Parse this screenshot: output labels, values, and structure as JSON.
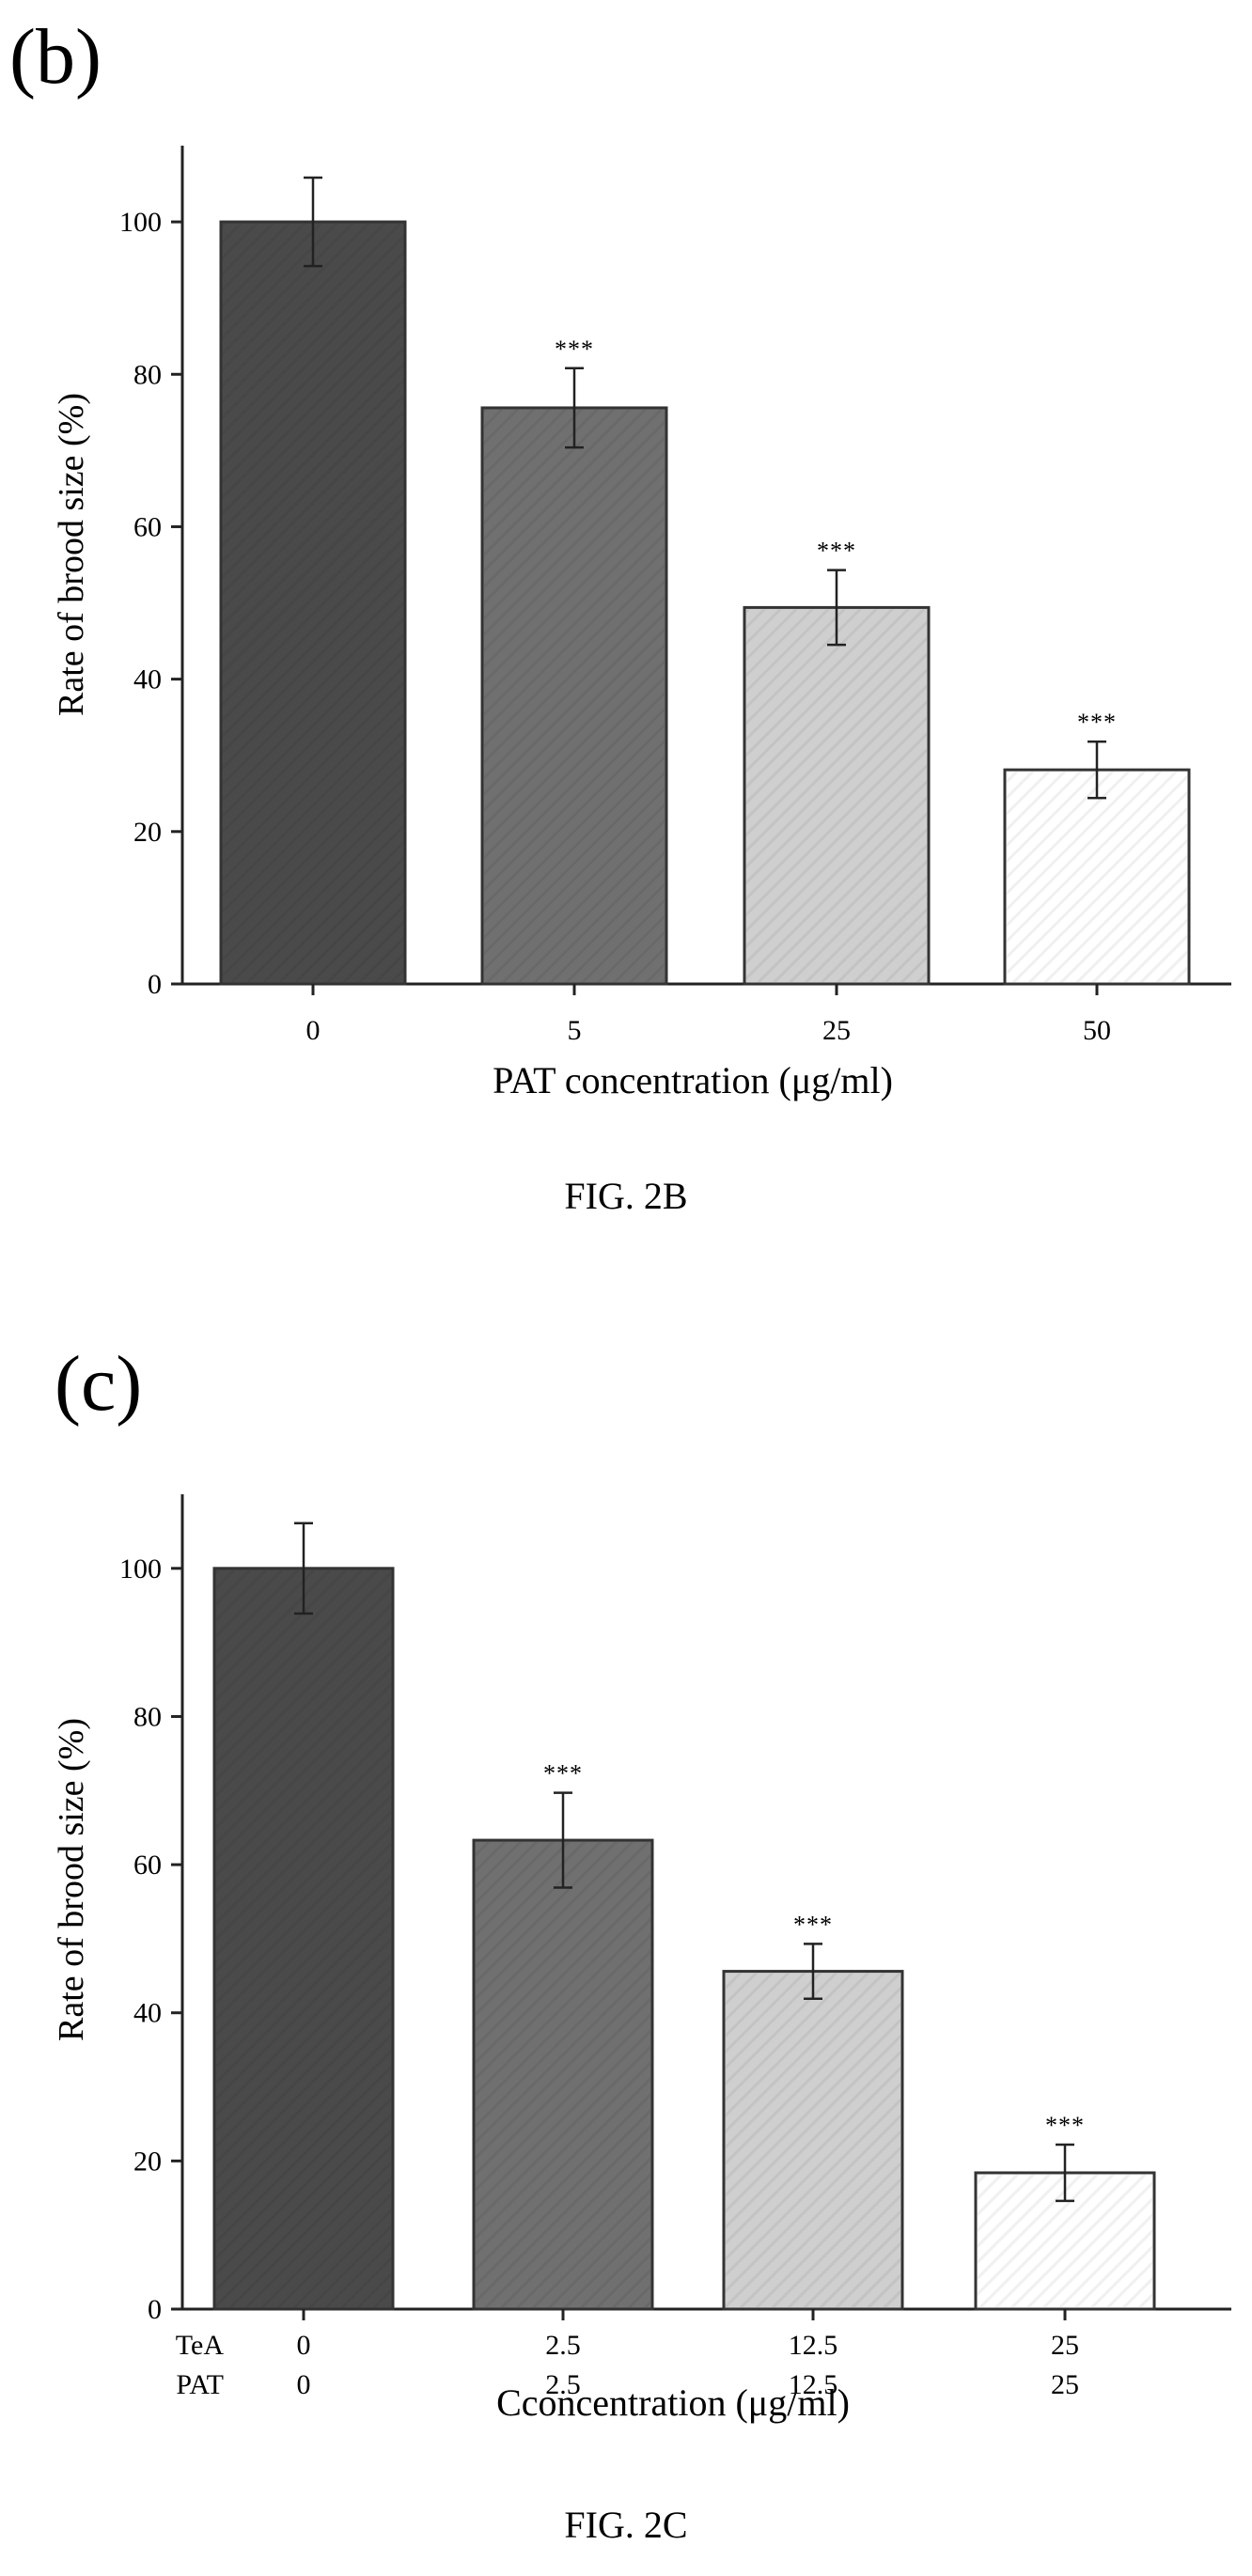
{
  "page": {
    "panels": [
      {
        "letter": "(b)",
        "caption": "FIG. 2B"
      },
      {
        "letter": "(c)",
        "caption": "FIG. 2C"
      }
    ]
  },
  "chart_data": [
    {
      "type": "bar",
      "panel": "(b)",
      "categories": [
        "0",
        "5",
        "25",
        "50"
      ],
      "values": [
        100,
        75.6,
        49.4,
        28.1
      ],
      "errors": [
        5.8,
        5.2,
        4.9,
        3.7
      ],
      "significance": [
        "",
        "***",
        "***",
        "***"
      ],
      "bar_colors": [
        "#4a4a4a",
        "#707070",
        "#cfcfcf",
        "#ffffff"
      ],
      "xlabel": "PAT concentration (μg/ml)",
      "ylabel": "Rate of brood size (%)",
      "ylim": [
        0,
        110
      ],
      "yticks": [
        0,
        20,
        40,
        60,
        80,
        100
      ],
      "grid": false
    },
    {
      "type": "bar",
      "panel": "(c)",
      "categories": [
        "0",
        "2.5",
        "12.5",
        "25"
      ],
      "row_labels": [
        "TeA",
        "PAT"
      ],
      "category_rows": [
        [
          "0",
          "2.5",
          "12.5",
          "25"
        ],
        [
          "0",
          "2.5",
          "12.5",
          "25"
        ]
      ],
      "values": [
        100,
        63.3,
        45.6,
        18.4
      ],
      "errors": [
        6.1,
        6.4,
        3.7,
        3.8
      ],
      "significance": [
        "",
        "***",
        "***",
        "***"
      ],
      "bar_colors": [
        "#4a4a4a",
        "#707070",
        "#cfcfcf",
        "#ffffff"
      ],
      "xlabel": "Cconcentration (μg/ml)",
      "ylabel": "Rate of brood size (%)",
      "ylim": [
        0,
        110
      ],
      "yticks": [
        0,
        20,
        40,
        60,
        80,
        100
      ],
      "grid": false
    }
  ]
}
